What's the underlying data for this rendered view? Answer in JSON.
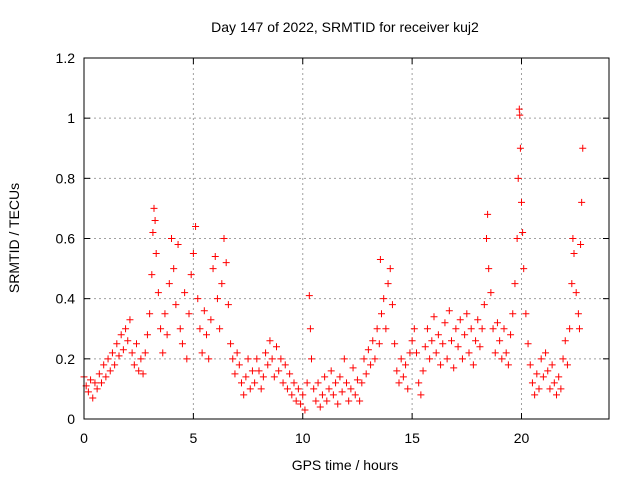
{
  "chart_data": {
    "type": "scatter",
    "title": "Day 147 of 2022, SRMTID for receiver kuj2",
    "xlabel": "GPS time / hours",
    "ylabel": "SRMTID / TECUs",
    "xlim": [
      0,
      24
    ],
    "ylim": [
      0,
      1.2
    ],
    "xticks": [
      0,
      5,
      10,
      15,
      20
    ],
    "xtick_labels": [
      "0",
      "5",
      "10",
      "15",
      "20"
    ],
    "yticks": [
      0,
      0.2,
      0.4,
      0.6,
      0.8,
      1,
      1.2
    ],
    "ytick_labels": [
      "0",
      "0.2",
      "0.4",
      "0.6",
      "0.8",
      "1",
      "1.2"
    ],
    "grid": true,
    "marker": "+",
    "color": "#ff0000",
    "series": [
      {
        "name": "kuj2",
        "points": [
          [
            0.0,
            0.14
          ],
          [
            0.1,
            0.11
          ],
          [
            0.2,
            0.09
          ],
          [
            0.3,
            0.13
          ],
          [
            0.4,
            0.07
          ],
          [
            0.5,
            0.12
          ],
          [
            0.6,
            0.1
          ],
          [
            0.7,
            0.15
          ],
          [
            0.8,
            0.12
          ],
          [
            0.9,
            0.18
          ],
          [
            1.0,
            0.14
          ],
          [
            1.1,
            0.2
          ],
          [
            1.2,
            0.16
          ],
          [
            1.3,
            0.22
          ],
          [
            1.4,
            0.18
          ],
          [
            1.5,
            0.25
          ],
          [
            1.6,
            0.21
          ],
          [
            1.7,
            0.28
          ],
          [
            1.8,
            0.23
          ],
          [
            1.9,
            0.3
          ],
          [
            2.0,
            0.26
          ],
          [
            2.1,
            0.33
          ],
          [
            2.2,
            0.22
          ],
          [
            2.3,
            0.18
          ],
          [
            2.4,
            0.25
          ],
          [
            2.5,
            0.16
          ],
          [
            2.6,
            0.2
          ],
          [
            2.7,
            0.15
          ],
          [
            2.8,
            0.22
          ],
          [
            2.9,
            0.28
          ],
          [
            3.0,
            0.35
          ],
          [
            3.1,
            0.48
          ],
          [
            3.15,
            0.62
          ],
          [
            3.2,
            0.7
          ],
          [
            3.25,
            0.66
          ],
          [
            3.3,
            0.55
          ],
          [
            3.4,
            0.42
          ],
          [
            3.5,
            0.3
          ],
          [
            3.6,
            0.22
          ],
          [
            3.7,
            0.35
          ],
          [
            3.8,
            0.28
          ],
          [
            3.9,
            0.45
          ],
          [
            4.0,
            0.6
          ],
          [
            4.1,
            0.5
          ],
          [
            4.2,
            0.38
          ],
          [
            4.3,
            0.58
          ],
          [
            4.4,
            0.3
          ],
          [
            4.5,
            0.25
          ],
          [
            4.6,
            0.42
          ],
          [
            4.7,
            0.2
          ],
          [
            4.8,
            0.35
          ],
          [
            4.9,
            0.48
          ],
          [
            5.0,
            0.55
          ],
          [
            5.1,
            0.64
          ],
          [
            5.2,
            0.4
          ],
          [
            5.3,
            0.3
          ],
          [
            5.4,
            0.22
          ],
          [
            5.5,
            0.36
          ],
          [
            5.6,
            0.28
          ],
          [
            5.7,
            0.2
          ],
          [
            5.8,
            0.33
          ],
          [
            5.9,
            0.5
          ],
          [
            6.0,
            0.54
          ],
          [
            6.1,
            0.4
          ],
          [
            6.2,
            0.3
          ],
          [
            6.3,
            0.45
          ],
          [
            6.4,
            0.6
          ],
          [
            6.5,
            0.52
          ],
          [
            6.6,
            0.38
          ],
          [
            6.7,
            0.25
          ],
          [
            6.8,
            0.2
          ],
          [
            6.9,
            0.15
          ],
          [
            7.0,
            0.22
          ],
          [
            7.1,
            0.18
          ],
          [
            7.2,
            0.12
          ],
          [
            7.3,
            0.08
          ],
          [
            7.4,
            0.14
          ],
          [
            7.5,
            0.2
          ],
          [
            7.6,
            0.1
          ],
          [
            7.7,
            0.16
          ],
          [
            7.8,
            0.12
          ],
          [
            7.9,
            0.2
          ],
          [
            8.0,
            0.16
          ],
          [
            8.1,
            0.1
          ],
          [
            8.2,
            0.14
          ],
          [
            8.3,
            0.22
          ],
          [
            8.4,
            0.18
          ],
          [
            8.5,
            0.26
          ],
          [
            8.6,
            0.2
          ],
          [
            8.7,
            0.14
          ],
          [
            8.8,
            0.24
          ],
          [
            8.9,
            0.16
          ],
          [
            9.0,
            0.2
          ],
          [
            9.1,
            0.12
          ],
          [
            9.2,
            0.18
          ],
          [
            9.3,
            0.1
          ],
          [
            9.4,
            0.15
          ],
          [
            9.5,
            0.08
          ],
          [
            9.6,
            0.12
          ],
          [
            9.7,
            0.06
          ],
          [
            9.8,
            0.1
          ],
          [
            9.9,
            0.05
          ],
          [
            10.0,
            0.08
          ],
          [
            10.1,
            0.03
          ],
          [
            10.2,
            0.12
          ],
          [
            10.3,
            0.41
          ],
          [
            10.35,
            0.3
          ],
          [
            10.4,
            0.2
          ],
          [
            10.5,
            0.1
          ],
          [
            10.6,
            0.06
          ],
          [
            10.7,
            0.12
          ],
          [
            10.8,
            0.04
          ],
          [
            10.9,
            0.08
          ],
          [
            11.0,
            0.14
          ],
          [
            11.1,
            0.06
          ],
          [
            11.2,
            0.1
          ],
          [
            11.3,
            0.16
          ],
          [
            11.4,
            0.08
          ],
          [
            11.5,
            0.12
          ],
          [
            11.6,
            0.05
          ],
          [
            11.7,
            0.14
          ],
          [
            11.8,
            0.09
          ],
          [
            11.9,
            0.2
          ],
          [
            12.0,
            0.12
          ],
          [
            12.1,
            0.06
          ],
          [
            12.2,
            0.1
          ],
          [
            12.3,
            0.17
          ],
          [
            12.4,
            0.08
          ],
          [
            12.5,
            0.13
          ],
          [
            12.6,
            0.06
          ],
          [
            12.7,
            0.12
          ],
          [
            12.8,
            0.2
          ],
          [
            12.9,
            0.15
          ],
          [
            13.0,
            0.23
          ],
          [
            13.1,
            0.18
          ],
          [
            13.2,
            0.26
          ],
          [
            13.3,
            0.2
          ],
          [
            13.4,
            0.3
          ],
          [
            13.5,
            0.25
          ],
          [
            13.55,
            0.53
          ],
          [
            13.6,
            0.35
          ],
          [
            13.7,
            0.4
          ],
          [
            13.8,
            0.3
          ],
          [
            13.9,
            0.45
          ],
          [
            14.0,
            0.5
          ],
          [
            14.1,
            0.38
          ],
          [
            14.2,
            0.25
          ],
          [
            14.3,
            0.16
          ],
          [
            14.4,
            0.12
          ],
          [
            14.5,
            0.2
          ],
          [
            14.6,
            0.14
          ],
          [
            14.7,
            0.18
          ],
          [
            14.8,
            0.1
          ],
          [
            14.9,
            0.22
          ],
          [
            15.0,
            0.26
          ],
          [
            15.1,
            0.3
          ],
          [
            15.2,
            0.22
          ],
          [
            15.3,
            0.12
          ],
          [
            15.4,
            0.08
          ],
          [
            15.5,
            0.16
          ],
          [
            15.6,
            0.24
          ],
          [
            15.7,
            0.3
          ],
          [
            15.8,
            0.2
          ],
          [
            15.9,
            0.26
          ],
          [
            16.0,
            0.34
          ],
          [
            16.1,
            0.22
          ],
          [
            16.2,
            0.28
          ],
          [
            16.3,
            0.18
          ],
          [
            16.4,
            0.25
          ],
          [
            16.5,
            0.32
          ],
          [
            16.6,
            0.2
          ],
          [
            16.7,
            0.36
          ],
          [
            16.8,
            0.26
          ],
          [
            16.9,
            0.17
          ],
          [
            17.0,
            0.3
          ],
          [
            17.1,
            0.24
          ],
          [
            17.2,
            0.33
          ],
          [
            17.3,
            0.2
          ],
          [
            17.4,
            0.28
          ],
          [
            17.5,
            0.35
          ],
          [
            17.6,
            0.22
          ],
          [
            17.7,
            0.3
          ],
          [
            17.8,
            0.18
          ],
          [
            17.9,
            0.26
          ],
          [
            18.0,
            0.33
          ],
          [
            18.1,
            0.24
          ],
          [
            18.2,
            0.3
          ],
          [
            18.3,
            0.38
          ],
          [
            18.4,
            0.6
          ],
          [
            18.45,
            0.68
          ],
          [
            18.5,
            0.5
          ],
          [
            18.6,
            0.42
          ],
          [
            18.7,
            0.3
          ],
          [
            18.8,
            0.22
          ],
          [
            18.9,
            0.32
          ],
          [
            19.0,
            0.26
          ],
          [
            19.1,
            0.2
          ],
          [
            19.2,
            0.3
          ],
          [
            19.3,
            0.22
          ],
          [
            19.4,
            0.18
          ],
          [
            19.5,
            0.28
          ],
          [
            19.6,
            0.35
          ],
          [
            19.7,
            0.45
          ],
          [
            19.8,
            0.6
          ],
          [
            19.85,
            0.8
          ],
          [
            19.9,
            1.03
          ],
          [
            19.92,
            1.01
          ],
          [
            19.95,
            0.9
          ],
          [
            20.0,
            0.72
          ],
          [
            20.05,
            0.62
          ],
          [
            20.1,
            0.5
          ],
          [
            20.2,
            0.35
          ],
          [
            20.3,
            0.25
          ],
          [
            20.4,
            0.18
          ],
          [
            20.5,
            0.12
          ],
          [
            20.6,
            0.08
          ],
          [
            20.7,
            0.15
          ],
          [
            20.8,
            0.1
          ],
          [
            20.9,
            0.2
          ],
          [
            21.0,
            0.14
          ],
          [
            21.1,
            0.22
          ],
          [
            21.2,
            0.16
          ],
          [
            21.3,
            0.1
          ],
          [
            21.4,
            0.18
          ],
          [
            21.5,
            0.12
          ],
          [
            21.6,
            0.08
          ],
          [
            21.7,
            0.14
          ],
          [
            21.8,
            0.1
          ],
          [
            21.9,
            0.2
          ],
          [
            22.0,
            0.26
          ],
          [
            22.1,
            0.18
          ],
          [
            22.2,
            0.3
          ],
          [
            22.3,
            0.45
          ],
          [
            22.35,
            0.6
          ],
          [
            22.4,
            0.55
          ],
          [
            22.5,
            0.42
          ],
          [
            22.6,
            0.35
          ],
          [
            22.65,
            0.3
          ],
          [
            22.7,
            0.58
          ],
          [
            22.75,
            0.72
          ],
          [
            22.8,
            0.9
          ]
        ]
      }
    ]
  }
}
